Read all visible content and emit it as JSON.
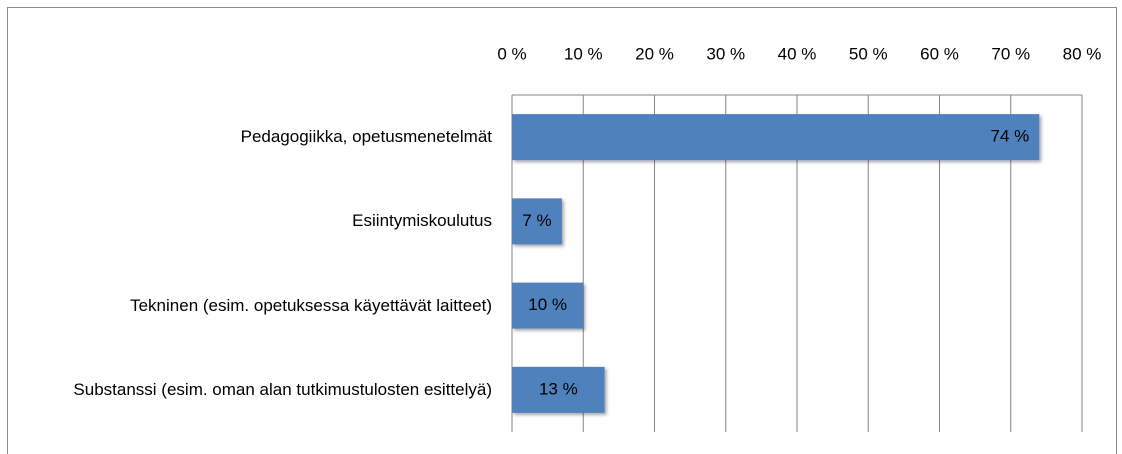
{
  "chart_data": {
    "type": "bar",
    "orientation": "horizontal",
    "categories": [
      "Pedagogiikka, opetusmenetelmät",
      "Esiintymiskoulutus",
      "Tekninen (esim. opetuksessa käyettävät laitteet)",
      "Substanssi (esim. oman alan tutkimustulosten esittelyä)"
    ],
    "values": [
      74,
      7,
      10,
      13
    ],
    "value_labels": [
      "74 %",
      "7 %",
      "10 %",
      "13 %"
    ],
    "color": "#4f81bd",
    "xlim": [
      0,
      80
    ],
    "xticks": [
      {
        "value": 0,
        "label": "0 %"
      },
      {
        "value": 10,
        "label": "10 %"
      },
      {
        "value": 20,
        "label": "20 %"
      },
      {
        "value": 30,
        "label": "30 %"
      },
      {
        "value": 40,
        "label": "40 %"
      },
      {
        "value": 50,
        "label": "50 %"
      },
      {
        "value": 60,
        "label": "60 %"
      },
      {
        "value": 70,
        "label": "70 %"
      },
      {
        "value": 80,
        "label": "80 %"
      }
    ],
    "grid": true
  }
}
